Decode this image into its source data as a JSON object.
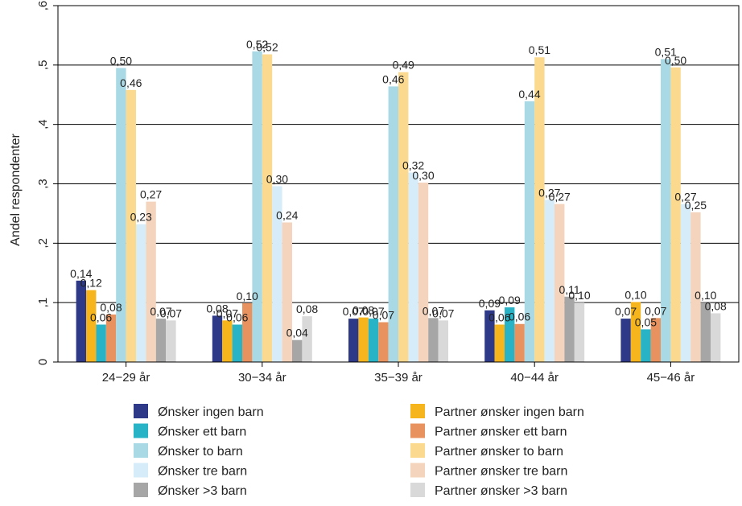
{
  "chart_data": {
    "type": "bar",
    "ylabel": "Andel respondenter",
    "ylim": [
      0,
      0.6
    ],
    "yticks": [
      0,
      0.1,
      0.2,
      0.3,
      0.4,
      0.5,
      0.6
    ],
    "ytick_labels": [
      "0",
      ",1",
      ",2",
      ",3",
      ",4",
      ",5",
      ",6"
    ],
    "grid": true,
    "legend_position": "bottom",
    "categories": [
      "24−29 år",
      "30−34 år",
      "35−39 år",
      "40−44 år",
      "45−46 år"
    ],
    "series": [
      {
        "name": "Ønsker ingen barn",
        "color": "#2e3a87",
        "values": [
          0.137,
          0.078,
          0.073,
          0.087,
          0.073
        ],
        "labels": [
          "0,14",
          "0,08",
          "0,07",
          "0,09",
          "0,07"
        ]
      },
      {
        "name": "Partner ønsker ingen barn",
        "color": "#f7b51d",
        "values": [
          0.121,
          0.07,
          0.075,
          0.063,
          0.101
        ],
        "labels": [
          "0,12",
          "0,07",
          "0,08",
          "0,06",
          "0,10"
        ]
      },
      {
        "name": "Ønsker ett barn",
        "color": "#28b3c6",
        "values": [
          0.063,
          0.063,
          0.073,
          0.092,
          0.055
        ],
        "labels": [
          "0,06",
          "0,06",
          "0,07",
          "0,09",
          "0,05"
        ]
      },
      {
        "name": "Partner ønsker ett barn",
        "color": "#e8935f",
        "values": [
          0.08,
          0.099,
          0.067,
          0.064,
          0.074
        ],
        "labels": [
          "0,08",
          "0,10",
          "0,07",
          "0,06",
          "0,07"
        ]
      },
      {
        "name": "Ønsker to barn",
        "color": "#a9d9e4",
        "values": [
          0.495,
          0.523,
          0.464,
          0.439,
          0.51
        ],
        "labels": [
          "0,50",
          "0,52",
          "0,46",
          "0,44",
          "0,51"
        ]
      },
      {
        "name": "Partner ønsker to barn",
        "color": "#fbd98e",
        "values": [
          0.458,
          0.518,
          0.488,
          0.513,
          0.496
        ],
        "labels": [
          "0,46",
          "0,52",
          "0,49",
          "0,51",
          "0,50"
        ]
      },
      {
        "name": "Ønsker tre barn",
        "color": "#d6ecf8",
        "values": [
          0.232,
          0.296,
          0.319,
          0.273,
          0.266
        ],
        "labels": [
          "0,23",
          "0,30",
          "0,32",
          "0,27",
          "0,27"
        ]
      },
      {
        "name": "Partner ønsker tre barn",
        "color": "#f4d4bd",
        "values": [
          0.27,
          0.235,
          0.302,
          0.266,
          0.252
        ],
        "labels": [
          "0,27",
          "0,24",
          "0,30",
          "0,27",
          "0,25"
        ]
      },
      {
        "name": "Ønsker >3 barn",
        "color": "#a6a6a6",
        "values": [
          0.073,
          0.037,
          0.074,
          0.11,
          0.1
        ],
        "labels": [
          "0,07",
          "0,04",
          "0,07",
          "0,11",
          "0,10"
        ]
      },
      {
        "name": "Partner ønsker >3 barn",
        "color": "#d9d9d9",
        "values": [
          0.07,
          0.077,
          0.07,
          0.1,
          0.082
        ],
        "labels": [
          "0,07",
          "0,08",
          "0,07",
          "0,10",
          "0,08"
        ]
      }
    ]
  }
}
